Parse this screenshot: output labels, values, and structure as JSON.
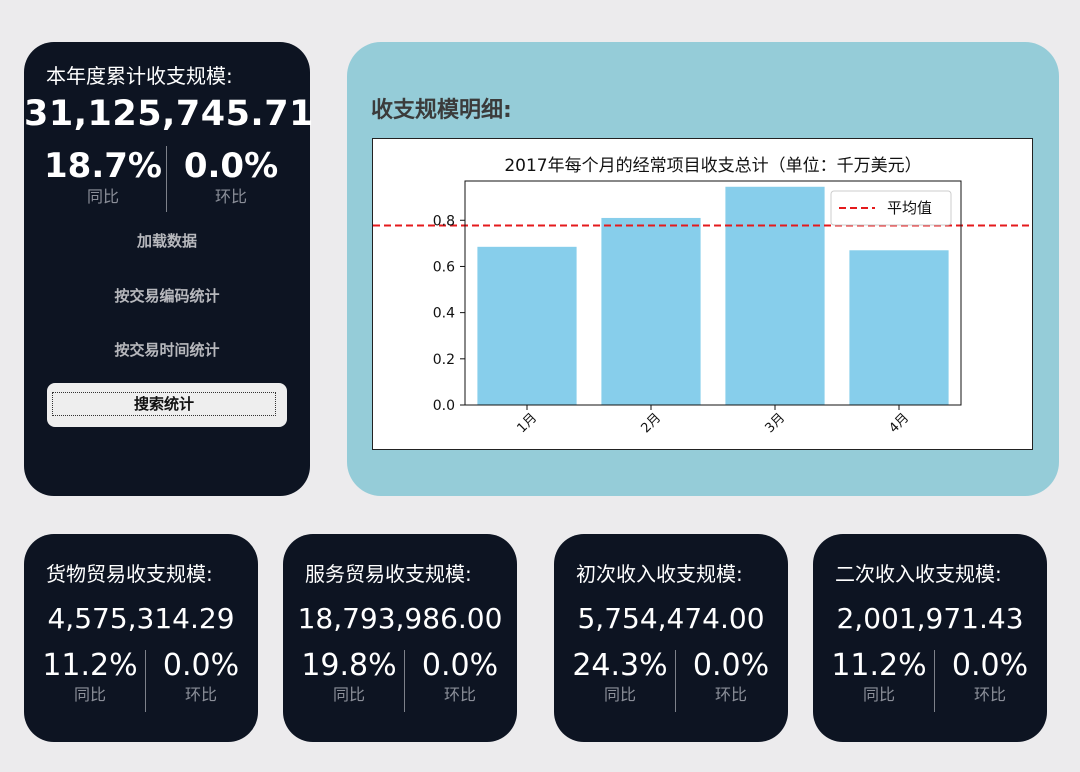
{
  "total": {
    "title": "本年度累计收支规模:",
    "value": "31,125,745.71",
    "yoy": "18.7%",
    "yoy_label": "同比",
    "mom": "0.0%",
    "mom_label": "环比"
  },
  "buttons": {
    "load": "加载数据",
    "by_code": "按交易编码统计",
    "by_time": "按交易时间统计",
    "search": "搜索统计"
  },
  "detail": {
    "title": "收支规模明细:"
  },
  "chart_data": {
    "type": "bar",
    "title": "2017年每个月的经常项目收支总计（单位：千万美元）",
    "categories": [
      "1月",
      "2月",
      "3月",
      "4月"
    ],
    "values": [
      0.685,
      0.81,
      0.945,
      0.67
    ],
    "average": 0.7775,
    "legend": "平均值",
    "legend_position": "top-right",
    "ylim": [
      0,
      0.97
    ],
    "yticks": [
      "0.0",
      "0.2",
      "0.4",
      "0.6",
      "0.8"
    ],
    "bar_color": "#87ceeb",
    "avg_color": "#e41a1c",
    "grid": false
  },
  "cards": [
    {
      "title": "货物贸易收支规模:",
      "value": "4,575,314.29",
      "yoy": "11.2%",
      "yoy_label": "同比",
      "mom": "0.0%",
      "mom_label": "环比"
    },
    {
      "title": "服务贸易收支规模:",
      "value": "18,793,986.00",
      "yoy": "19.8%",
      "yoy_label": "同比",
      "mom": "0.0%",
      "mom_label": "环比"
    },
    {
      "title": "初次收入收支规模:",
      "value": "5,754,474.00",
      "yoy": "24.3%",
      "yoy_label": "同比",
      "mom": "0.0%",
      "mom_label": "环比"
    },
    {
      "title": "二次收入收支规模:",
      "value": "2,001,971.43",
      "yoy": "11.2%",
      "yoy_label": "同比",
      "mom": "0.0%",
      "mom_label": "环比"
    }
  ],
  "colors": {
    "page_bg": "#ecebed",
    "card_bg": "#0d1422",
    "detail_bg": "#95ccd8"
  }
}
